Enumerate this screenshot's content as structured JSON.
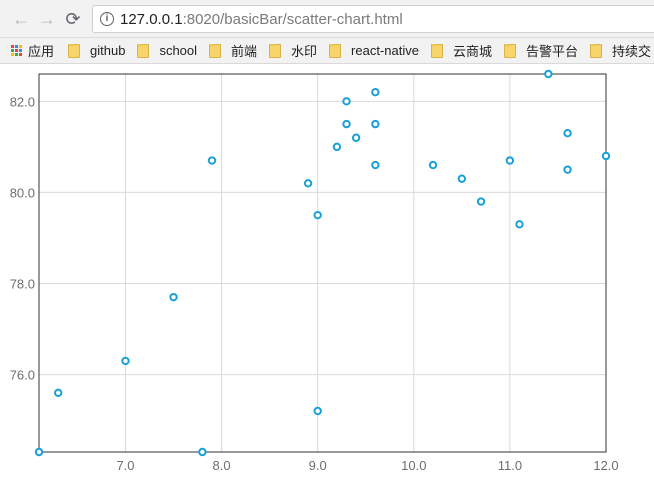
{
  "browser": {
    "url_host": "127.0.0.1",
    "url_path": ":8020/basicBar/scatter-chart.html"
  },
  "bookmarks": {
    "apps_label": "应用",
    "items": [
      "github",
      "school",
      "前端",
      "水印",
      "react-native",
      "云商城",
      "告警平台",
      "持续交"
    ]
  },
  "colors": {
    "point_stroke": "#1aa0d8",
    "grid": "#d9d9d9",
    "axis_text": "#6e6e6e"
  },
  "chart_data": {
    "type": "scatter",
    "xlim": [
      6.1,
      12.0
    ],
    "ylim": [
      74.3,
      82.6
    ],
    "xticks": [
      "7.0",
      "8.0",
      "9.0",
      "10.0",
      "11.0",
      "12.0"
    ],
    "yticks": [
      "76.0",
      "78.0",
      "80.0",
      "82.0"
    ],
    "grid": true,
    "points": [
      [
        6.1,
        74.3
      ],
      [
        6.3,
        75.6
      ],
      [
        7.0,
        76.3
      ],
      [
        7.5,
        77.7
      ],
      [
        7.8,
        74.3
      ],
      [
        7.9,
        80.7
      ],
      [
        8.9,
        80.2
      ],
      [
        9.0,
        79.5
      ],
      [
        9.0,
        75.2
      ],
      [
        9.2,
        81.0
      ],
      [
        9.3,
        82.0
      ],
      [
        9.3,
        81.5
      ],
      [
        9.4,
        81.2
      ],
      [
        9.6,
        82.2
      ],
      [
        9.6,
        81.5
      ],
      [
        9.6,
        80.6
      ],
      [
        10.2,
        80.6
      ],
      [
        10.5,
        80.3
      ],
      [
        10.7,
        79.8
      ],
      [
        11.0,
        80.7
      ],
      [
        11.1,
        79.3
      ],
      [
        11.4,
        82.6
      ],
      [
        11.6,
        81.3
      ],
      [
        11.6,
        80.5
      ],
      [
        12.0,
        80.8
      ]
    ]
  }
}
